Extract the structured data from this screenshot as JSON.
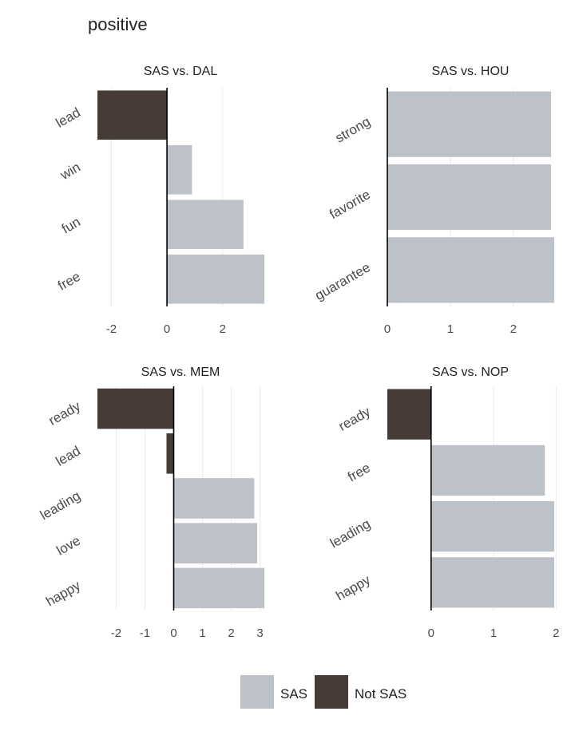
{
  "chart_data": {
    "type": "bar",
    "title": "positive",
    "orientation": "horizontal",
    "colors": {
      "SAS": "#bcc2c8",
      "Not SAS": "#463b37"
    },
    "legend": {
      "position": "bottom",
      "entries": [
        "SAS",
        "Not SAS"
      ]
    },
    "panels": [
      {
        "title": "SAS vs. DAL",
        "categories": [
          "lead",
          "win",
          "fun",
          "free"
        ],
        "values": [
          -2.5,
          0.9,
          2.75,
          3.5
        ],
        "groups": [
          "Not SAS",
          "SAS",
          "SAS",
          "SAS"
        ],
        "xlim": [
          -2.5,
          3.5
        ],
        "xticks": [
          -2,
          0,
          2
        ]
      },
      {
        "title": "SAS vs. HOU",
        "categories": [
          "strong",
          "favorite",
          "guarantee"
        ],
        "values": [
          2.6,
          2.6,
          2.65
        ],
        "groups": [
          "SAS",
          "SAS",
          "SAS"
        ],
        "xlim": [
          0,
          2.65
        ],
        "xticks": [
          0,
          1,
          2
        ]
      },
      {
        "title": "SAS vs. MEM",
        "categories": [
          "ready",
          "lead",
          "leading",
          "love",
          "happy"
        ],
        "values": [
          -2.65,
          -0.25,
          2.8,
          2.9,
          3.15
        ],
        "groups": [
          "Not SAS",
          "Not SAS",
          "SAS",
          "SAS",
          "SAS"
        ],
        "xlim": [
          -2.65,
          3.15
        ],
        "xticks": [
          -2,
          -1,
          0,
          1,
          2,
          3
        ]
      },
      {
        "title": "SAS vs. NOP",
        "categories": [
          "ready",
          "free",
          "leading",
          "happy"
        ],
        "values": [
          -0.7,
          1.82,
          1.97,
          1.97
        ],
        "groups": [
          "Not SAS",
          "SAS",
          "SAS",
          "SAS"
        ],
        "xlim": [
          -0.7,
          1.97
        ],
        "xticks": [
          0,
          1,
          2
        ]
      }
    ]
  }
}
